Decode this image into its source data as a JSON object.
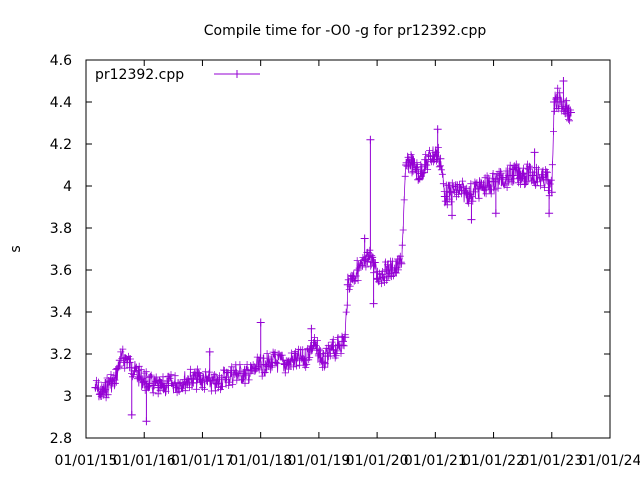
{
  "chart_data": {
    "type": "line",
    "title": "Compile time for -O0 -g for pr12392.cpp",
    "xlabel": "",
    "ylabel": "s",
    "x_ticks": [
      "01/01/15",
      "01/01/16",
      "01/01/17",
      "01/01/18",
      "01/01/19",
      "01/01/20",
      "01/01/21",
      "01/01/22",
      "01/01/23",
      "01/01/24"
    ],
    "x_range": [
      "2015-01-01",
      "2024-01-01"
    ],
    "y_ticks": [
      "2.8",
      "3",
      "3.2",
      "3.4",
      "3.6",
      "3.8",
      "4",
      "4.2",
      "4.4",
      "4.6"
    ],
    "ylim": [
      2.8,
      4.6
    ],
    "grid": false,
    "legend_position": "top-left",
    "series": [
      {
        "name": "pr12392.cpp",
        "color": "#9400d3",
        "marker": "plus",
        "points": [
          [
            "2015-03-01",
            3.04
          ],
          [
            "2015-04-01",
            3.01
          ],
          [
            "2015-05-01",
            3.03
          ],
          [
            "2015-06-01",
            3.07
          ],
          [
            "2015-07-01",
            3.06
          ],
          [
            "2015-08-01",
            3.17
          ],
          [
            "2015-09-01",
            3.18
          ],
          [
            "2015-10-01",
            3.16
          ],
          [
            "2015-11-01",
            3.12
          ],
          [
            "2015-12-01",
            3.09
          ],
          [
            "2016-01-01",
            3.07
          ],
          [
            "2016-02-01",
            3.06
          ],
          [
            "2016-03-01",
            3.05
          ],
          [
            "2016-04-01",
            3.04
          ],
          [
            "2016-05-01",
            3.04
          ],
          [
            "2016-06-01",
            3.05
          ],
          [
            "2016-08-01",
            3.06
          ],
          [
            "2016-10-01",
            3.08
          ],
          [
            "2016-12-01",
            3.08
          ],
          [
            "2017-02-01",
            3.07
          ],
          [
            "2017-04-01",
            3.06
          ],
          [
            "2017-06-01",
            3.09
          ],
          [
            "2017-08-01",
            3.11
          ],
          [
            "2017-10-01",
            3.1
          ],
          [
            "2017-12-01",
            3.13
          ],
          [
            "2018-02-01",
            3.15
          ],
          [
            "2018-04-01",
            3.16
          ],
          [
            "2018-06-01",
            3.15
          ],
          [
            "2018-08-01",
            3.17
          ],
          [
            "2018-10-01",
            3.17
          ],
          [
            "2018-11-01",
            3.22
          ],
          [
            "2018-12-01",
            3.24
          ],
          [
            "2019-01-01",
            3.2
          ],
          [
            "2019-02-01",
            3.16
          ],
          [
            "2019-03-01",
            3.19
          ],
          [
            "2019-04-01",
            3.22
          ],
          [
            "2019-05-01",
            3.24
          ],
          [
            "2019-06-01",
            3.26
          ],
          [
            "2019-06-15",
            3.28
          ],
          [
            "2019-07-01",
            3.53
          ],
          [
            "2019-08-01",
            3.57
          ],
          [
            "2019-09-01",
            3.6
          ],
          [
            "2019-10-01",
            3.62
          ],
          [
            "2019-11-01",
            3.64
          ],
          [
            "2019-12-01",
            3.66
          ],
          [
            "2020-01-01",
            3.56
          ],
          [
            "2020-02-01",
            3.58
          ],
          [
            "2020-03-01",
            3.6
          ],
          [
            "2020-04-01",
            3.6
          ],
          [
            "2020-05-01",
            3.61
          ],
          [
            "2020-06-01",
            3.63
          ],
          [
            "2020-07-01",
            4.1
          ],
          [
            "2020-08-01",
            4.12
          ],
          [
            "2020-09-01",
            4.08
          ],
          [
            "2020-10-01",
            4.06
          ],
          [
            "2020-11-01",
            4.1
          ],
          [
            "2020-12-01",
            4.14
          ],
          [
            "2021-01-01",
            4.16
          ],
          [
            "2021-02-01",
            4.13
          ],
          [
            "2021-03-01",
            3.95
          ],
          [
            "2021-04-01",
            3.97
          ],
          [
            "2021-06-01",
            3.98
          ],
          [
            "2021-08-01",
            3.96
          ],
          [
            "2021-10-01",
            3.99
          ],
          [
            "2021-12-01",
            4.0
          ],
          [
            "2022-01-01",
            4.02
          ],
          [
            "2022-03-01",
            4.04
          ],
          [
            "2022-05-01",
            4.05
          ],
          [
            "2022-07-01",
            4.06
          ],
          [
            "2022-09-01",
            4.05
          ],
          [
            "2022-11-01",
            4.04
          ],
          [
            "2022-12-01",
            4.03
          ],
          [
            "2023-01-01",
            3.97
          ],
          [
            "2023-01-15",
            4.4
          ],
          [
            "2023-02-01",
            4.42
          ],
          [
            "2023-03-01",
            4.4
          ],
          [
            "2023-04-01",
            4.37
          ],
          [
            "2023-05-01",
            4.35
          ]
        ]
      }
    ],
    "outliers": [
      [
        "2015-10-15",
        2.91
      ],
      [
        "2016-01-15",
        2.88
      ],
      [
        "2017-02-15",
        3.21
      ],
      [
        "2018-01-01",
        3.35
      ],
      [
        "2018-11-15",
        3.32
      ],
      [
        "2019-10-15",
        3.75
      ],
      [
        "2019-11-20",
        4.22
      ],
      [
        "2019-12-10",
        3.44
      ],
      [
        "2020-09-15",
        4.03
      ],
      [
        "2021-01-15",
        4.27
      ],
      [
        "2021-04-15",
        3.86
      ],
      [
        "2021-08-15",
        3.84
      ],
      [
        "2022-01-15",
        3.87
      ],
      [
        "2022-09-15",
        4.16
      ],
      [
        "2022-12-15",
        3.87
      ],
      [
        "2023-03-15",
        4.5
      ]
    ]
  }
}
